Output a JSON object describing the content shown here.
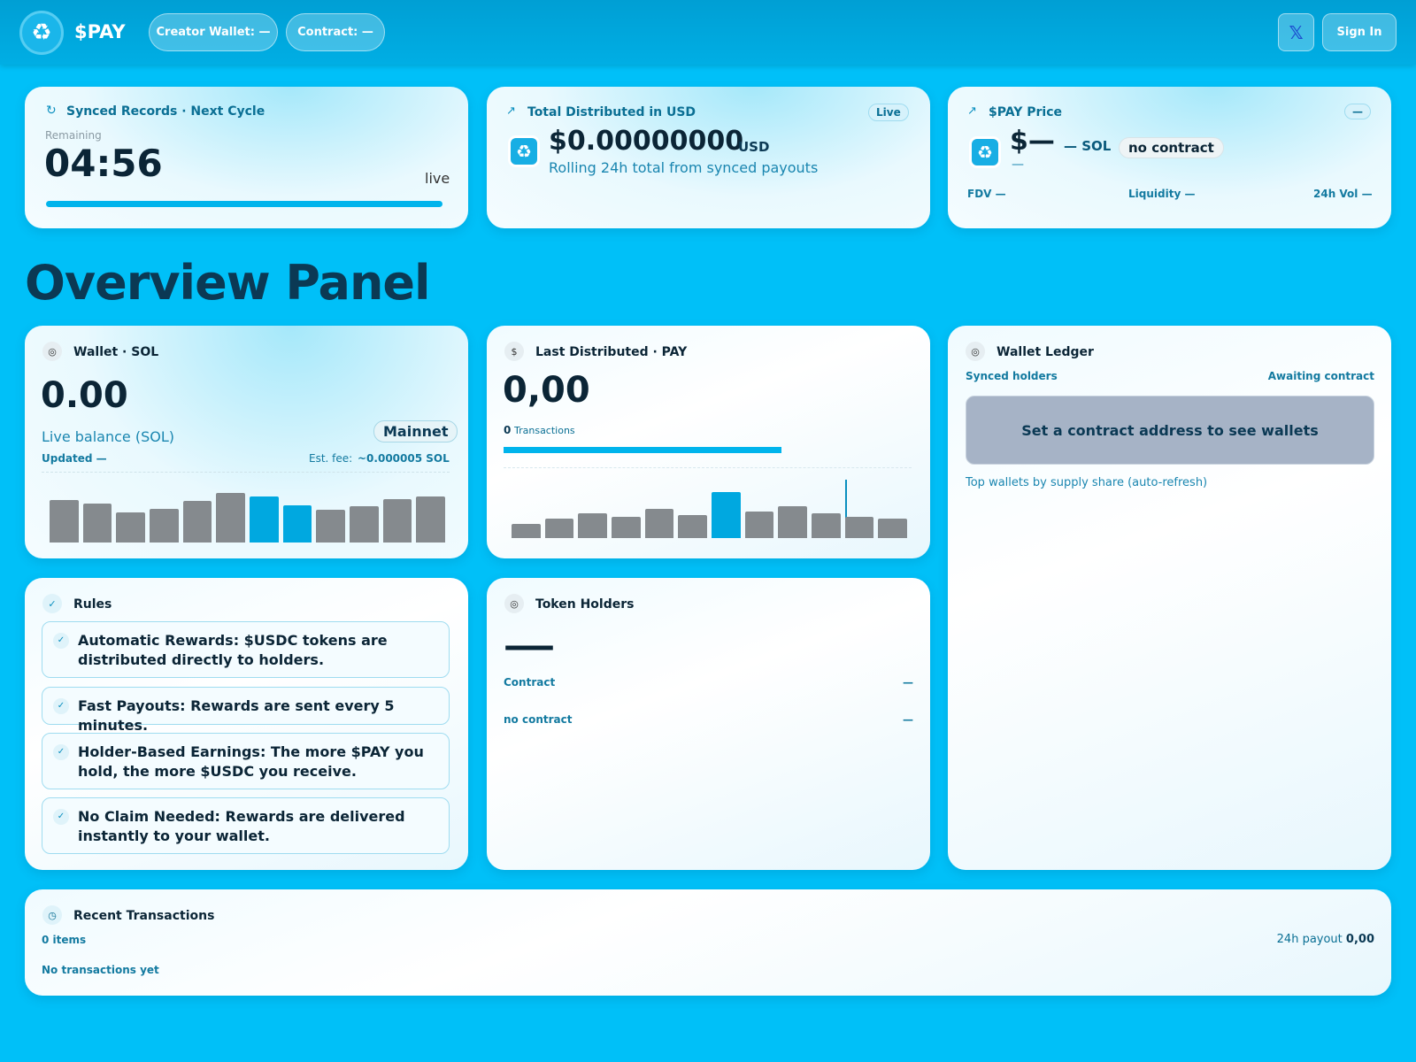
{
  "header": {
    "brand": "$PAY",
    "creator_wallet": "Creator Wallet: —",
    "contract": "Contract: —",
    "x_icon": "𝕏",
    "sign_in": "Sign In"
  },
  "cycle_card": {
    "title": "Synced Records · Next Cycle",
    "remaining_label": "Remaining",
    "countdown": "04:56",
    "status": "live"
  },
  "distributed_card": {
    "title": "Total Distributed in USD",
    "badge": "Live",
    "amount": "$0.00000000",
    "unit": "USD",
    "caption": "Rolling 24h total from synced payouts"
  },
  "price_card": {
    "title": "$PAY Price",
    "badge": "—",
    "price": "$—",
    "sol": "— SOL",
    "contract_pill": "no contract",
    "change": "—",
    "fdv": "FDV —",
    "liquidity": "Liquidity —",
    "volume": "24h Vol —"
  },
  "page_title": "Overview Panel",
  "wallet_card": {
    "title": "Wallet · SOL",
    "balance": "0.00",
    "network": "Mainnet",
    "caption": "Live balance (SOL)",
    "updated": "Updated —",
    "fee_label": "Est. fee:",
    "fee": "~0.000005 SOL",
    "bars": [
      48,
      44,
      34,
      38,
      47,
      56,
      52,
      42,
      37,
      41,
      49,
      52
    ],
    "bar_colors": [
      "#858a8e",
      "#858a8e",
      "#858a8e",
      "#858a8e",
      "#858a8e",
      "#858a8e",
      "#00a8e0",
      "#00a8e0",
      "#858a8e",
      "#858a8e",
      "#858a8e",
      "#858a8e"
    ]
  },
  "pay_card": {
    "title": "Last Distributed · PAY",
    "amount": "0,00",
    "tx_count": "0",
    "tx_label": "Transactions",
    "bars": [
      16,
      22,
      28,
      24,
      33,
      26,
      52,
      30,
      36,
      28,
      24,
      22
    ],
    "bar_colors": [
      "#858a8e",
      "#858a8e",
      "#858a8e",
      "#858a8e",
      "#858a8e",
      "#858a8e",
      "#00a8e0",
      "#858a8e",
      "#858a8e",
      "#858a8e",
      "#858a8e",
      "#858a8e"
    ]
  },
  "ledger_card": {
    "title": "Wallet Ledger",
    "left_label": "Synced holders",
    "right_label": "Awaiting contract",
    "empty": "Set a contract address to see wallets",
    "caption": "Top wallets by supply share (auto-refresh)"
  },
  "rules_card": {
    "title": "Rules",
    "items": [
      "Automatic Rewards: $USDC tokens are distributed directly to holders.",
      "Fast Payouts: Rewards are sent every 5 minutes.",
      "Holder-Based Earnings: The more $PAY you hold, the more $USDC you receive.",
      "No Claim Needed: Rewards are delivered instantly to your wallet."
    ]
  },
  "holders_card": {
    "title": "Token Holders",
    "count": "—",
    "rows": [
      [
        "Contract",
        "—"
      ],
      [
        "no contract",
        "—"
      ]
    ]
  },
  "transactions_card": {
    "title": "Recent Transactions",
    "items": "0 items",
    "payout_label": "24h payout",
    "payout": "0,00",
    "empty": "No transactions yet"
  }
}
